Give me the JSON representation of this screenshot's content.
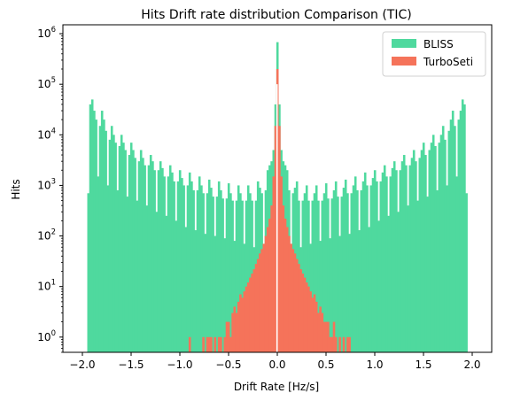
{
  "chart_data": {
    "type": "bar",
    "title": "Hits Drift rate distribution Comparison (TIC)",
    "xlabel": "Drift Rate [Hz/s]",
    "ylabel": "Hits",
    "xlim": [
      -2.2,
      2.2
    ],
    "ylim": [
      0.5,
      1500000
    ],
    "yscale": "log",
    "grid": false,
    "legend_position": "top-right",
    "xticks": [
      -2.0,
      -1.5,
      -1.0,
      -0.5,
      0.0,
      0.5,
      1.0,
      1.5,
      2.0
    ],
    "xtick_labels": [
      "−2.0",
      "−1.5",
      "−1.0",
      "−0.5",
      "0.0",
      "0.5",
      "1.0",
      "1.5",
      "2.0"
    ],
    "yticks": [
      1,
      10,
      100,
      1000,
      10000,
      100000,
      1000000
    ],
    "ytick_labels": [
      {
        "base": "10",
        "exp": "0"
      },
      {
        "base": "10",
        "exp": "1"
      },
      {
        "base": "10",
        "exp": "2"
      },
      {
        "base": "10",
        "exp": "3"
      },
      {
        "base": "10",
        "exp": "4"
      },
      {
        "base": "10",
        "exp": "5"
      },
      {
        "base": "10",
        "exp": "6"
      }
    ],
    "bin_width": 0.02,
    "series": [
      {
        "name": "BLISS",
        "color": "#4fd99e",
        "bins": [
          [
            -1.94,
            700
          ],
          [
            -1.92,
            40000
          ],
          [
            -1.9,
            50000
          ],
          [
            -1.88,
            30000
          ],
          [
            -1.86,
            20000
          ],
          [
            -1.84,
            1500
          ],
          [
            -1.82,
            15000
          ],
          [
            -1.8,
            30000
          ],
          [
            -1.78,
            20000
          ],
          [
            -1.76,
            12000
          ],
          [
            -1.74,
            1000
          ],
          [
            -1.72,
            8000
          ],
          [
            -1.7,
            15000
          ],
          [
            -1.68,
            10000
          ],
          [
            -1.66,
            7000
          ],
          [
            -1.64,
            800
          ],
          [
            -1.62,
            6000
          ],
          [
            -1.6,
            10000
          ],
          [
            -1.58,
            7000
          ],
          [
            -1.56,
            5000
          ],
          [
            -1.54,
            600
          ],
          [
            -1.52,
            4000
          ],
          [
            -1.5,
            7000
          ],
          [
            -1.48,
            5000
          ],
          [
            -1.46,
            3500
          ],
          [
            -1.44,
            500
          ],
          [
            -1.42,
            3000
          ],
          [
            -1.4,
            5000
          ],
          [
            -1.38,
            3500
          ],
          [
            -1.36,
            2500
          ],
          [
            -1.34,
            400
          ],
          [
            -1.32,
            2500
          ],
          [
            -1.3,
            4000
          ],
          [
            -1.28,
            3000
          ],
          [
            -1.26,
            2000
          ],
          [
            -1.24,
            300
          ],
          [
            -1.22,
            2000
          ],
          [
            -1.2,
            3000
          ],
          [
            -1.18,
            2200
          ],
          [
            -1.16,
            1500
          ],
          [
            -1.14,
            250
          ],
          [
            -1.12,
            1500
          ],
          [
            -1.1,
            2500
          ],
          [
            -1.08,
            1800
          ],
          [
            -1.06,
            1200
          ],
          [
            -1.04,
            200
          ],
          [
            -1.02,
            1200
          ],
          [
            -1.0,
            2000
          ],
          [
            -0.98,
            1400
          ],
          [
            -0.96,
            1000
          ],
          [
            -0.94,
            150
          ],
          [
            -0.92,
            1000
          ],
          [
            -0.9,
            1800
          ],
          [
            -0.88,
            1200
          ],
          [
            -0.86,
            800
          ],
          [
            -0.84,
            130
          ],
          [
            -0.82,
            800
          ],
          [
            -0.8,
            1500
          ],
          [
            -0.78,
            1000
          ],
          [
            -0.76,
            700
          ],
          [
            -0.74,
            110
          ],
          [
            -0.72,
            700
          ],
          [
            -0.7,
            1300
          ],
          [
            -0.68,
            900
          ],
          [
            -0.66,
            600
          ],
          [
            -0.64,
            100
          ],
          [
            -0.62,
            600
          ],
          [
            -0.6,
            1200
          ],
          [
            -0.58,
            800
          ],
          [
            -0.56,
            550
          ],
          [
            -0.54,
            90
          ],
          [
            -0.52,
            550
          ],
          [
            -0.5,
            1100
          ],
          [
            -0.48,
            700
          ],
          [
            -0.46,
            500
          ],
          [
            -0.44,
            80
          ],
          [
            -0.42,
            500
          ],
          [
            -0.4,
            1000
          ],
          [
            -0.38,
            700
          ],
          [
            -0.36,
            500
          ],
          [
            -0.34,
            70
          ],
          [
            -0.32,
            500
          ],
          [
            -0.3,
            1000
          ],
          [
            -0.28,
            700
          ],
          [
            -0.26,
            500
          ],
          [
            -0.24,
            60
          ],
          [
            -0.22,
            500
          ],
          [
            -0.2,
            1200
          ],
          [
            -0.18,
            900
          ],
          [
            -0.16,
            700
          ],
          [
            -0.14,
            60
          ],
          [
            -0.12,
            800
          ],
          [
            -0.1,
            2000
          ],
          [
            -0.08,
            2500
          ],
          [
            -0.06,
            3000
          ],
          [
            -0.04,
            5000
          ],
          [
            -0.02,
            40000
          ],
          [
            0.0,
            680000
          ],
          [
            0.02,
            40000
          ],
          [
            0.04,
            5000
          ],
          [
            0.06,
            3000
          ],
          [
            0.08,
            2500
          ],
          [
            0.1,
            2000
          ],
          [
            0.12,
            800
          ],
          [
            0.14,
            60
          ],
          [
            0.16,
            700
          ],
          [
            0.18,
            900
          ],
          [
            0.2,
            1200
          ],
          [
            0.22,
            500
          ],
          [
            0.24,
            60
          ],
          [
            0.26,
            500
          ],
          [
            0.28,
            700
          ],
          [
            0.3,
            1000
          ],
          [
            0.32,
            500
          ],
          [
            0.34,
            70
          ],
          [
            0.36,
            500
          ],
          [
            0.38,
            700
          ],
          [
            0.4,
            1000
          ],
          [
            0.42,
            500
          ],
          [
            0.44,
            80
          ],
          [
            0.46,
            500
          ],
          [
            0.48,
            700
          ],
          [
            0.5,
            1100
          ],
          [
            0.52,
            550
          ],
          [
            0.54,
            90
          ],
          [
            0.56,
            550
          ],
          [
            0.58,
            800
          ],
          [
            0.6,
            1200
          ],
          [
            0.62,
            600
          ],
          [
            0.64,
            100
          ],
          [
            0.66,
            600
          ],
          [
            0.68,
            900
          ],
          [
            0.7,
            1300
          ],
          [
            0.72,
            700
          ],
          [
            0.74,
            110
          ],
          [
            0.76,
            700
          ],
          [
            0.78,
            1000
          ],
          [
            0.8,
            1500
          ],
          [
            0.82,
            800
          ],
          [
            0.84,
            130
          ],
          [
            0.86,
            800
          ],
          [
            0.88,
            1200
          ],
          [
            0.9,
            1800
          ],
          [
            0.92,
            1000
          ],
          [
            0.94,
            150
          ],
          [
            0.96,
            1000
          ],
          [
            0.98,
            1400
          ],
          [
            1.0,
            2000
          ],
          [
            1.02,
            1200
          ],
          [
            1.04,
            200
          ],
          [
            1.06,
            1200
          ],
          [
            1.08,
            1800
          ],
          [
            1.1,
            2500
          ],
          [
            1.12,
            1500
          ],
          [
            1.14,
            250
          ],
          [
            1.16,
            1500
          ],
          [
            1.18,
            2200
          ],
          [
            1.2,
            3000
          ],
          [
            1.22,
            2000
          ],
          [
            1.24,
            300
          ],
          [
            1.26,
            2000
          ],
          [
            1.28,
            3000
          ],
          [
            1.3,
            4000
          ],
          [
            1.32,
            2500
          ],
          [
            1.34,
            400
          ],
          [
            1.36,
            2500
          ],
          [
            1.38,
            3500
          ],
          [
            1.4,
            5000
          ],
          [
            1.42,
            3000
          ],
          [
            1.44,
            500
          ],
          [
            1.46,
            3500
          ],
          [
            1.48,
            5000
          ],
          [
            1.5,
            7000
          ],
          [
            1.52,
            4000
          ],
          [
            1.54,
            600
          ],
          [
            1.56,
            5000
          ],
          [
            1.58,
            7000
          ],
          [
            1.6,
            10000
          ],
          [
            1.62,
            6000
          ],
          [
            1.64,
            800
          ],
          [
            1.66,
            7000
          ],
          [
            1.68,
            10000
          ],
          [
            1.7,
            15000
          ],
          [
            1.72,
            8000
          ],
          [
            1.74,
            1000
          ],
          [
            1.76,
            12000
          ],
          [
            1.78,
            20000
          ],
          [
            1.8,
            30000
          ],
          [
            1.82,
            15000
          ],
          [
            1.84,
            1500
          ],
          [
            1.86,
            20000
          ],
          [
            1.88,
            30000
          ],
          [
            1.9,
            50000
          ],
          [
            1.92,
            40000
          ],
          [
            1.94,
            700
          ]
        ]
      },
      {
        "name": "TurboSeti",
        "color": "#f5735a",
        "bins": [
          [
            -0.9,
            1
          ],
          [
            -0.76,
            1
          ],
          [
            -0.72,
            1
          ],
          [
            -0.7,
            1
          ],
          [
            -0.68,
            1
          ],
          [
            -0.64,
            1
          ],
          [
            -0.6,
            1
          ],
          [
            -0.58,
            1
          ],
          [
            -0.54,
            1
          ],
          [
            -0.52,
            2
          ],
          [
            -0.5,
            2
          ],
          [
            -0.48,
            1
          ],
          [
            -0.46,
            3
          ],
          [
            -0.44,
            4
          ],
          [
            -0.42,
            3
          ],
          [
            -0.4,
            5
          ],
          [
            -0.38,
            7
          ],
          [
            -0.36,
            6
          ],
          [
            -0.34,
            8
          ],
          [
            -0.32,
            10
          ],
          [
            -0.3,
            12
          ],
          [
            -0.28,
            15
          ],
          [
            -0.26,
            18
          ],
          [
            -0.24,
            22
          ],
          [
            -0.22,
            28
          ],
          [
            -0.2,
            35
          ],
          [
            -0.18,
            45
          ],
          [
            -0.16,
            55
          ],
          [
            -0.14,
            70
          ],
          [
            -0.12,
            100
          ],
          [
            -0.1,
            150
          ],
          [
            -0.08,
            220
          ],
          [
            -0.06,
            400
          ],
          [
            -0.04,
            1500
          ],
          [
            -0.02,
            15000
          ],
          [
            0.0,
            200000
          ],
          [
            0.02,
            15000
          ],
          [
            0.04,
            1500
          ],
          [
            0.06,
            400
          ],
          [
            0.08,
            220
          ],
          [
            0.1,
            150
          ],
          [
            0.12,
            100
          ],
          [
            0.14,
            70
          ],
          [
            0.16,
            55
          ],
          [
            0.18,
            45
          ],
          [
            0.2,
            35
          ],
          [
            0.22,
            28
          ],
          [
            0.24,
            22
          ],
          [
            0.26,
            18
          ],
          [
            0.28,
            15
          ],
          [
            0.3,
            12
          ],
          [
            0.32,
            10
          ],
          [
            0.34,
            8
          ],
          [
            0.36,
            6
          ],
          [
            0.38,
            7
          ],
          [
            0.4,
            5
          ],
          [
            0.42,
            3
          ],
          [
            0.44,
            4
          ],
          [
            0.46,
            3
          ],
          [
            0.48,
            2
          ],
          [
            0.5,
            2
          ],
          [
            0.52,
            2
          ],
          [
            0.54,
            1
          ],
          [
            0.56,
            1
          ],
          [
            0.58,
            2
          ],
          [
            0.6,
            1
          ],
          [
            0.64,
            1
          ],
          [
            0.68,
            1
          ],
          [
            0.72,
            1
          ],
          [
            0.74,
            1
          ]
        ]
      }
    ]
  }
}
